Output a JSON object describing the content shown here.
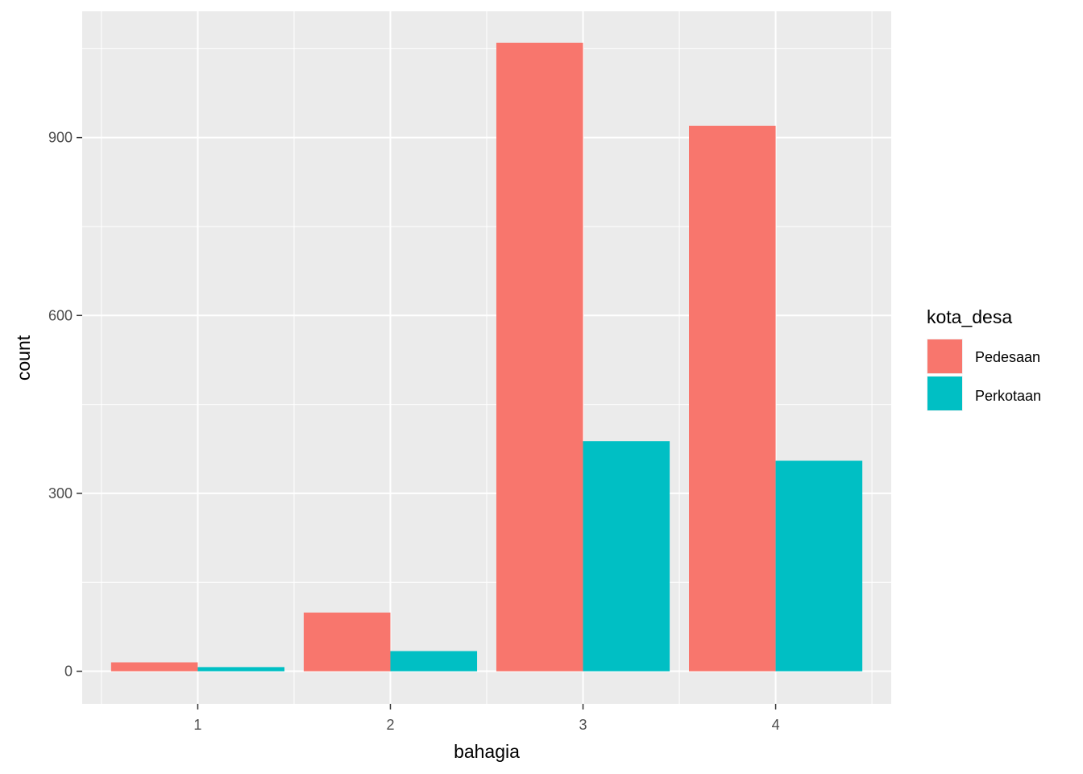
{
  "chart_data": {
    "type": "bar",
    "xlabel": "bahagia",
    "ylabel": "count",
    "categories": [
      "1",
      "2",
      "3",
      "4"
    ],
    "series": [
      {
        "name": "Pedesaan",
        "color": "#F8766D",
        "values": [
          15,
          99,
          1060,
          920
        ]
      },
      {
        "name": "Perkotaan",
        "color": "#00BFC4",
        "values": [
          7,
          34,
          388,
          355
        ]
      }
    ],
    "ylim": [
      -55,
      1113
    ],
    "yticks": [
      0,
      300,
      600,
      900
    ],
    "grid": true,
    "legend": {
      "title": "kota_desa",
      "placement": "right"
    }
  }
}
